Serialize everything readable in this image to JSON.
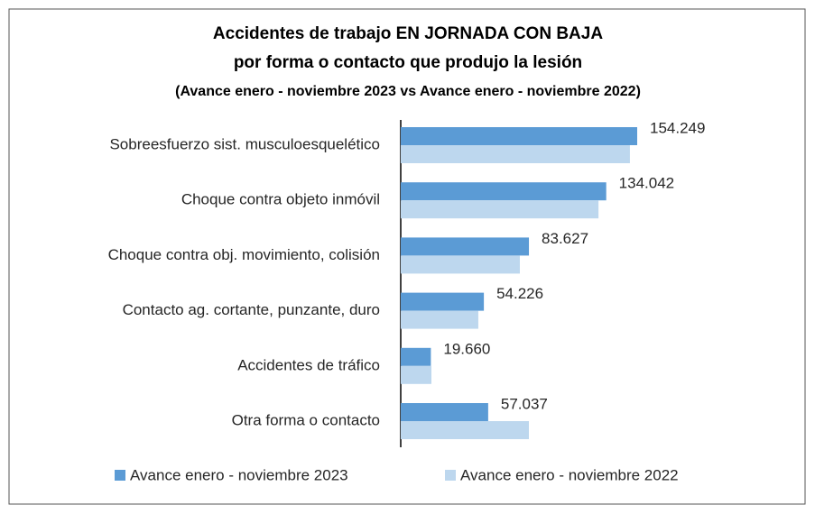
{
  "chart_data": {
    "type": "hbar",
    "title": [
      "Accidentes de trabajo EN JORNADA CON BAJA",
      "por forma o contacto que produjo la lesión",
      "(Avance enero - noviembre 2023 vs Avance enero - noviembre 2022)"
    ],
    "categories": [
      "Sobreesfuerzo sist. musculoesquelético",
      "Choque contra objeto inmóvil",
      "Choque contra obj. movimiento, colisión",
      "Contacto ag. cortante, punzante, duro",
      "Accidentes de tráfico",
      "Otra forma o contacto"
    ],
    "series": [
      {
        "name": "Avance enero - noviembre 2023",
        "color": "#5b9bd5",
        "values": [
          154249,
          134042,
          83627,
          54226,
          19660,
          57037
        ],
        "value_labels": [
          "154.249",
          "134.042",
          "83.627",
          "54.226",
          "19.660",
          "57.037"
        ]
      },
      {
        "name": "Avance enero - noviembre 2022",
        "color": "#bdd7ee",
        "values": [
          149500,
          129000,
          77700,
          50600,
          20000,
          83600
        ]
      }
    ],
    "legend": "bottom"
  }
}
